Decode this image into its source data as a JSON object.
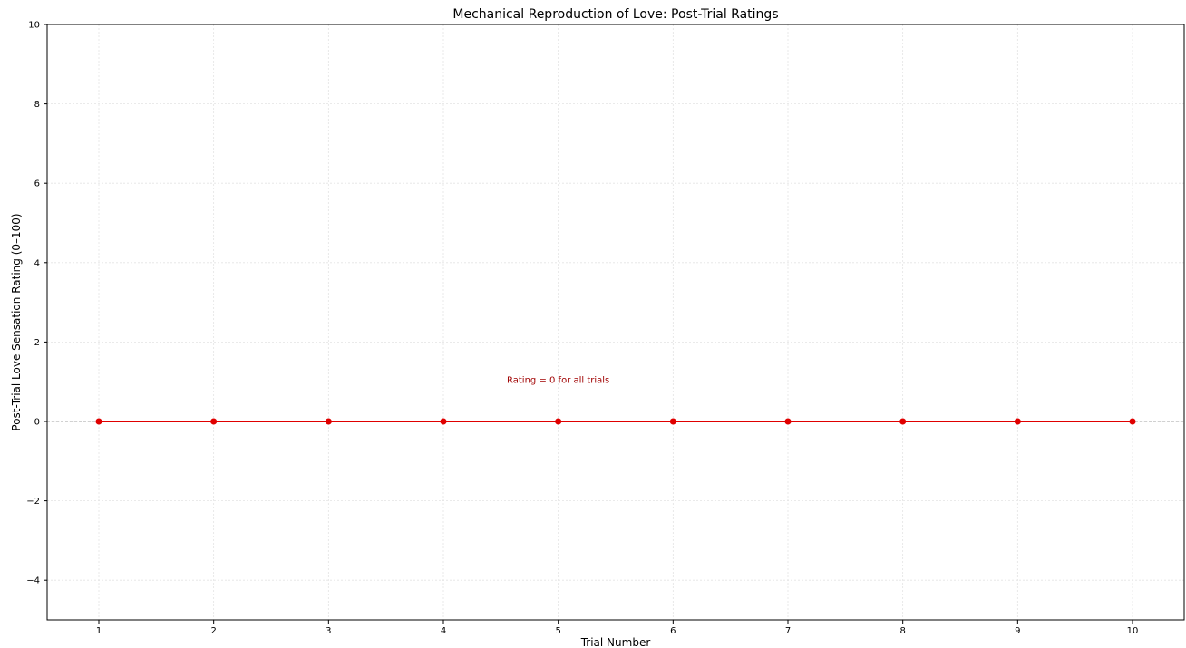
{
  "chart_data": {
    "type": "line",
    "title": "Mechanical Reproduction of Love: Post-Trial Ratings",
    "xlabel": "Trial Number",
    "ylabel": "Post-Trial Love Sensation Rating (0–100)",
    "x": [
      1,
      2,
      3,
      4,
      5,
      6,
      7,
      8,
      9,
      10
    ],
    "series": [
      {
        "values": [
          0,
          0,
          0,
          0,
          0,
          0,
          0,
          0,
          0,
          0
        ],
        "color": "#e00000",
        "marker": "circle"
      }
    ],
    "xlim": [
      0.55,
      10.45
    ],
    "ylim": [
      -5,
      10
    ],
    "x_ticks": [
      1,
      2,
      3,
      4,
      5,
      6,
      7,
      8,
      9,
      10
    ],
    "x_tick_labels": [
      "1",
      "2",
      "3",
      "4",
      "5",
      "6",
      "7",
      "8",
      "9",
      "10"
    ],
    "y_ticks": [
      -4,
      -2,
      0,
      2,
      4,
      6,
      8,
      10
    ],
    "y_tick_labels": [
      "−4",
      "−2",
      "0",
      "2",
      "4",
      "6",
      "8",
      "10"
    ],
    "grid": true,
    "reference_line": {
      "y": 0,
      "style": "dashed",
      "color": "#888888"
    },
    "annotation": {
      "text": "Rating = 0 for all trials",
      "x": 5,
      "y": 1.05,
      "color": "#a00000"
    }
  }
}
